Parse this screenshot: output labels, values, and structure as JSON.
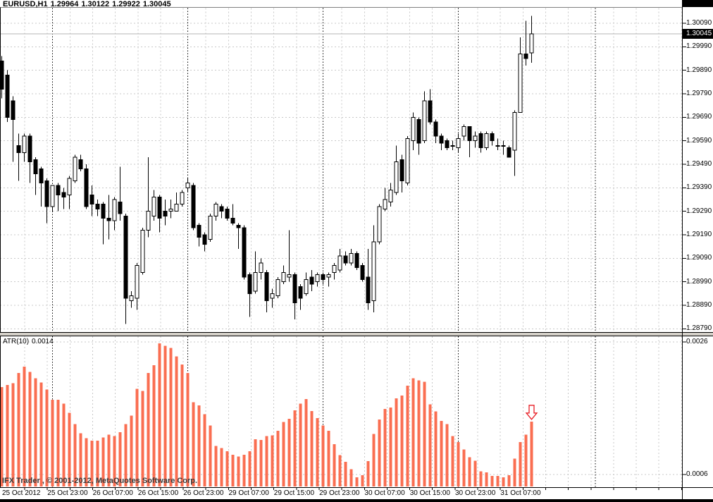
{
  "title": {
    "symbol": "EURUSD,H1",
    "open": "1.29964",
    "high": "1.30122",
    "low": "1.29922",
    "close": "1.30045"
  },
  "main_chart": {
    "current_price": "1.30045"
  },
  "indicator_panel": {
    "name": "ATR(10)",
    "value": "0.0014",
    "arrow_annotation": "red-down-arrow"
  },
  "watermark": "IFX Trader , © 2001-2012, MetaQuotes Software Corp.",
  "colors": {
    "background": "#ffffff",
    "grid": "#c8c8c8",
    "day_separator": "#000000",
    "bull_candle_fill": "#ffffff",
    "bear_candle_fill": "#000000",
    "candle_outline": "#000000",
    "atr_bar": "#fa6e51",
    "price_line": "#b5b5b5",
    "badge_bg": "#000000",
    "badge_text": "#ffffff",
    "arrow": "#e81e25",
    "watermark_text": "#3c3c3c",
    "splitter": "#d4d0c8",
    "border": "#000000"
  },
  "chart_data": [
    {
      "type": "candlestick",
      "title": "EURUSD H1",
      "ylim": [
        1.2875,
        1.3012
      ],
      "grid": true,
      "y_tick_labels": [
        "1.30090",
        "1.29990",
        "1.29890",
        "1.29790",
        "1.29690",
        "1.29590",
        "1.29490",
        "1.29390",
        "1.29290",
        "1.29190",
        "1.29090",
        "1.28990",
        "1.28890",
        "1.28790"
      ],
      "x_tick_labels": [
        "25 Oct 2012",
        "25 Oct 23:00",
        "26 Oct 07:00",
        "26 Oct 15:00",
        "26 Oct 23:00",
        "29 Oct 07:00",
        "29 Oct 15:00",
        "29 Oct 23:00",
        "30 Oct 07:00",
        "30 Oct 15:00",
        "30 Oct 23:00",
        "31 Oct 07:00"
      ],
      "ohlc": [
        [
          1.2993,
          1.2995,
          1.2977,
          1.2981
        ],
        [
          1.2987,
          1.2989,
          1.2967,
          1.2969
        ],
        [
          1.2976,
          1.2978,
          1.295,
          1.2968
        ],
        [
          1.2957,
          1.2962,
          1.2942,
          1.2954
        ],
        [
          1.2954,
          1.2962,
          1.295,
          1.2961
        ],
        [
          1.2961,
          1.2962,
          1.2941,
          1.295
        ],
        [
          1.2951,
          1.2952,
          1.2936,
          1.2945
        ],
        [
          1.2947,
          1.2948,
          1.2931,
          1.2941
        ],
        [
          1.2942,
          1.2943,
          1.2924,
          1.2931
        ],
        [
          1.2931,
          1.294,
          1.2929,
          1.294
        ],
        [
          1.294,
          1.2941,
          1.2929,
          1.2936
        ],
        [
          1.2937,
          1.2939,
          1.293,
          1.2935
        ],
        [
          1.2936,
          1.2944,
          1.293,
          1.2943
        ],
        [
          1.2942,
          1.2953,
          1.2941,
          1.2952
        ],
        [
          1.2951,
          1.2953,
          1.2946,
          1.2947
        ],
        [
          1.2947,
          1.2949,
          1.293,
          1.2931
        ],
        [
          1.2936,
          1.294,
          1.2927,
          1.2932
        ],
        [
          1.2932,
          1.2934,
          1.2927,
          1.293
        ],
        [
          1.2932,
          1.2933,
          1.2915,
          1.2926
        ],
        [
          1.2926,
          1.2936,
          1.2917,
          1.2925
        ],
        [
          1.2925,
          1.2935,
          1.2921,
          1.2934
        ],
        [
          1.2933,
          1.2948,
          1.2925,
          1.2928
        ],
        [
          1.2927,
          1.2928,
          1.2881,
          1.2892
        ],
        [
          1.2891,
          1.2895,
          1.2888,
          1.2893
        ],
        [
          1.2892,
          1.2907,
          1.2887,
          1.2906
        ],
        [
          1.2903,
          1.2922,
          1.2902,
          1.2921
        ],
        [
          1.2921,
          1.2952,
          1.2918,
          1.2929
        ],
        [
          1.2927,
          1.2938,
          1.2925,
          1.2935
        ],
        [
          1.2935,
          1.2936,
          1.292,
          1.2926
        ],
        [
          1.2929,
          1.2934,
          1.2923,
          1.2927
        ],
        [
          1.2929,
          1.2934,
          1.2926,
          1.293
        ],
        [
          1.2929,
          1.2937,
          1.2929,
          1.2932
        ],
        [
          1.2932,
          1.2938,
          1.2931,
          1.2937
        ],
        [
          1.2939,
          1.2943,
          1.2937,
          1.2941
        ],
        [
          1.294,
          1.2941,
          1.2921,
          1.2922
        ],
        [
          1.2923,
          1.2924,
          1.2914,
          1.2918
        ],
        [
          1.2919,
          1.292,
          1.2912,
          1.2915
        ],
        [
          1.2917,
          1.2928,
          1.2916,
          1.2927
        ],
        [
          1.2927,
          1.2933,
          1.2925,
          1.2932
        ],
        [
          1.2931,
          1.2932,
          1.2926,
          1.2929
        ],
        [
          1.293,
          1.2931,
          1.2925,
          1.2926
        ],
        [
          1.2926,
          1.2932,
          1.2923,
          1.2924
        ],
        [
          1.2923,
          1.2924,
          1.2913,
          1.2922
        ],
        [
          1.2922,
          1.2923,
          1.29,
          1.2901
        ],
        [
          1.2902,
          1.2903,
          1.2884,
          1.2894
        ],
        [
          1.2895,
          1.2912,
          1.2894,
          1.2903
        ],
        [
          1.2903,
          1.2909,
          1.29,
          1.2907
        ],
        [
          1.2903,
          1.2904,
          1.2886,
          1.2891
        ],
        [
          1.2892,
          1.2896,
          1.2888,
          1.2894
        ],
        [
          1.2893,
          1.2901,
          1.2892,
          1.29
        ],
        [
          1.2899,
          1.2906,
          1.2898,
          1.2903
        ],
        [
          1.2901,
          1.2921,
          1.2899,
          1.2902
        ],
        [
          1.2902,
          1.2903,
          1.2883,
          1.289
        ],
        [
          1.2897,
          1.2898,
          1.2887,
          1.2892
        ],
        [
          1.2894,
          1.2903,
          1.2893,
          1.29
        ],
        [
          1.2901,
          1.2904,
          1.2895,
          1.2898
        ],
        [
          1.2899,
          1.2903,
          1.2897,
          1.2902
        ],
        [
          1.2902,
          1.2903,
          1.2898,
          1.29
        ],
        [
          1.2901,
          1.2903,
          1.2897,
          1.2902
        ],
        [
          1.2903,
          1.2907,
          1.29,
          1.2906
        ],
        [
          1.2904,
          1.2913,
          1.2903,
          1.291
        ],
        [
          1.291,
          1.2912,
          1.2906,
          1.2907
        ],
        [
          1.2907,
          1.2913,
          1.2906,
          1.2911
        ],
        [
          1.2911,
          1.2912,
          1.2904,
          1.2905
        ],
        [
          1.2906,
          1.2907,
          1.2899,
          1.29
        ],
        [
          1.2901,
          1.2913,
          1.2887,
          1.289
        ],
        [
          1.2891,
          1.2923,
          1.2886,
          1.2916
        ],
        [
          1.2916,
          1.2932,
          1.2915,
          1.2931
        ],
        [
          1.293,
          1.2939,
          1.2929,
          1.2934
        ],
        [
          1.2933,
          1.2941,
          1.2931,
          1.2938
        ],
        [
          1.2937,
          1.2957,
          1.2936,
          1.295
        ],
        [
          1.2951,
          1.2953,
          1.2937,
          1.2942
        ],
        [
          1.2941,
          1.2961,
          1.294,
          1.296
        ],
        [
          1.2959,
          1.2971,
          1.2955,
          1.2969
        ],
        [
          1.2968,
          1.2969,
          1.2953,
          1.2958
        ],
        [
          1.2959,
          1.298,
          1.2958,
          1.2976
        ],
        [
          1.2976,
          1.2981,
          1.2966,
          1.2967
        ],
        [
          1.2967,
          1.2968,
          1.2958,
          1.2961
        ],
        [
          1.2961,
          1.2962,
          1.2955,
          1.2958
        ],
        [
          1.2959,
          1.296,
          1.2955,
          1.2956
        ],
        [
          1.2957,
          1.2959,
          1.2955,
          1.2957
        ],
        [
          1.2956,
          1.2962,
          1.2954,
          1.296
        ],
        [
          1.2961,
          1.2966,
          1.2959,
          1.2965
        ],
        [
          1.2965,
          1.2965,
          1.2952,
          1.2959
        ],
        [
          1.2959,
          1.2963,
          1.2956,
          1.2961
        ],
        [
          1.2962,
          1.2963,
          1.2954,
          1.2956
        ],
        [
          1.2956,
          1.2963,
          1.2955,
          1.2962
        ],
        [
          1.2962,
          1.2963,
          1.2957,
          1.2959
        ],
        [
          1.2957,
          1.296,
          1.2955,
          1.2957
        ],
        [
          1.2957,
          1.2959,
          1.2953,
          1.2957
        ],
        [
          1.2956,
          1.2957,
          1.2952,
          1.2952
        ],
        [
          1.2955,
          1.2972,
          1.2944,
          1.2971
        ],
        [
          1.2971,
          1.3003,
          1.2971,
          1.2996
        ],
        [
          1.2996,
          1.301,
          1.2991,
          1.2994
        ],
        [
          1.29964,
          1.30122,
          1.29922,
          1.30045
        ]
      ]
    },
    {
      "type": "bar",
      "title": "ATR(10)",
      "ylim": [
        0.0004,
        0.0028
      ],
      "y_tick_labels": [
        "0.0026",
        "0.0006"
      ],
      "last_value_label": "0.0014",
      "values": [
        0.00192,
        0.00195,
        0.00198,
        0.00213,
        0.00223,
        0.00215,
        0.00205,
        0.00199,
        0.00188,
        0.00173,
        0.00173,
        0.00167,
        0.00153,
        0.00136,
        0.00122,
        0.00115,
        0.00111,
        0.00111,
        0.00116,
        0.0012,
        0.00118,
        0.00124,
        0.00136,
        0.00149,
        0.00189,
        0.00186,
        0.00213,
        0.00225,
        0.00258,
        0.00254,
        0.00251,
        0.00238,
        0.00226,
        0.00213,
        0.00169,
        0.00164,
        0.00151,
        0.00134,
        0.00103,
        0.001,
        0.00095,
        0.0009,
        0.00087,
        0.0009,
        0.00095,
        0.00113,
        0.00112,
        0.00118,
        0.00119,
        0.00126,
        0.00139,
        0.00144,
        0.00157,
        0.00167,
        0.00174,
        0.00156,
        0.00145,
        0.00134,
        0.00126,
        0.00106,
        0.00089,
        0.00079,
        0.00068,
        0.00056,
        0.00059,
        0.0008,
        0.00121,
        0.00143,
        0.00159,
        0.00161,
        0.00175,
        0.00179,
        0.00194,
        0.00205,
        0.00202,
        0.002,
        0.00166,
        0.00155,
        0.00141,
        0.00136,
        0.00118,
        0.00109,
        0.00098,
        0.00086,
        0.00081,
        0.00065,
        0.00063,
        0.00058,
        0.00058,
        0.00056,
        0.00059,
        0.00084,
        0.00109,
        0.0012,
        0.0014
      ]
    }
  ]
}
